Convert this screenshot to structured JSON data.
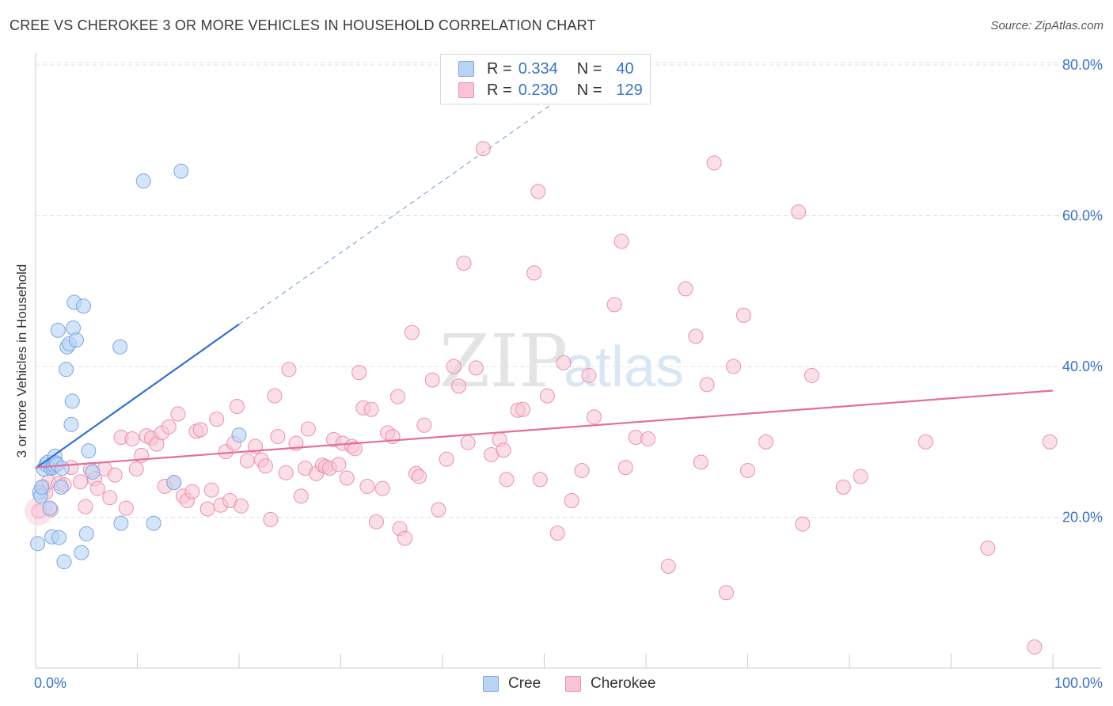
{
  "title": "CREE VS CHEROKEE 3 OR MORE VEHICLES IN HOUSEHOLD CORRELATION CHART",
  "source": "Source: ZipAtlas.com",
  "watermark": {
    "zip": "ZIP",
    "atlas": "atlas"
  },
  "legend": {
    "rows": [
      {
        "r_label": "R =",
        "r_value": "0.334",
        "n_label": "N =",
        "n_value": "40"
      },
      {
        "r_label": "R =",
        "r_value": "0.230",
        "n_label": "N =",
        "n_value": "129"
      }
    ]
  },
  "bottom_legend": [
    "Cree",
    "Cherokee"
  ],
  "colors": {
    "cree_fill": "#b9d3f5",
    "cree_stroke": "#7aa6e0",
    "cree_line": "#2f6fd0",
    "cherokee_fill": "#f8c4d4",
    "cherokee_stroke": "#ec8fad",
    "cherokee_line": "#e46e98",
    "grid": "#e0e0e0",
    "tick_text": "#3b73c8"
  },
  "chart_data": {
    "type": "scatter",
    "title": "CREE VS CHEROKEE 3 OR MORE VEHICLES IN HOUSEHOLD CORRELATION CHART",
    "xlabel": "",
    "ylabel": "3 or more Vehicles in Household",
    "xlim": [
      0,
      100
    ],
    "ylim": [
      0,
      84
    ],
    "x_ticks": [
      0,
      100
    ],
    "x_tick_labels": [
      "0.0%",
      "100.0%"
    ],
    "y_ticks": [
      20,
      40,
      60,
      80
    ],
    "y_tick_labels": [
      "20.0%",
      "40.0%",
      "60.0%",
      "80.0%"
    ],
    "grid": true,
    "legend_position": "top-center",
    "series": [
      {
        "name": "Cree",
        "r": 0.334,
        "n": 40,
        "trend": {
          "x": [
            0,
            20
          ],
          "y": [
            26.5,
            45.6
          ],
          "extended_to": [
            52,
            76
          ]
        },
        "points": [
          [
            0.2,
            16.5
          ],
          [
            0.4,
            23.3
          ],
          [
            0.5,
            22.8
          ],
          [
            0.6,
            24.0
          ],
          [
            0.8,
            26.4
          ],
          [
            1.0,
            27.0
          ],
          [
            1.2,
            27.3
          ],
          [
            1.4,
            21.2
          ],
          [
            1.5,
            26.5
          ],
          [
            1.6,
            17.4
          ],
          [
            1.7,
            26.6
          ],
          [
            1.8,
            26.9
          ],
          [
            1.9,
            28.1
          ],
          [
            2.0,
            27.2
          ],
          [
            2.1,
            27.0
          ],
          [
            2.2,
            44.8
          ],
          [
            2.3,
            17.3
          ],
          [
            2.5,
            24.0
          ],
          [
            2.6,
            26.5
          ],
          [
            2.8,
            14.1
          ],
          [
            3.0,
            39.6
          ],
          [
            3.1,
            42.6
          ],
          [
            3.3,
            43.0
          ],
          [
            3.5,
            32.3
          ],
          [
            3.6,
            35.4
          ],
          [
            3.7,
            45.1
          ],
          [
            3.8,
            48.5
          ],
          [
            4.0,
            43.5
          ],
          [
            4.5,
            15.3
          ],
          [
            4.7,
            48.0
          ],
          [
            5.0,
            17.8
          ],
          [
            5.2,
            28.8
          ],
          [
            5.6,
            26.0
          ],
          [
            8.3,
            42.6
          ],
          [
            8.4,
            19.2
          ],
          [
            10.6,
            64.6
          ],
          [
            11.6,
            19.2
          ],
          [
            13.6,
            24.6
          ],
          [
            14.3,
            65.9
          ],
          [
            20.0,
            30.9
          ]
        ]
      },
      {
        "name": "Cherokee",
        "r": 0.23,
        "n": 129,
        "trend": {
          "x": [
            0,
            100
          ],
          "y": [
            26.6,
            36.8
          ]
        },
        "points": [
          [
            0.3,
            20.8
          ],
          [
            0.8,
            24.0
          ],
          [
            1.0,
            23.3
          ],
          [
            1.3,
            24.7
          ],
          [
            1.5,
            21.0
          ],
          [
            2.3,
            24.5
          ],
          [
            2.8,
            24.3
          ],
          [
            3.5,
            26.6
          ],
          [
            4.4,
            24.7
          ],
          [
            4.9,
            21.4
          ],
          [
            5.4,
            26.3
          ],
          [
            5.8,
            25.1
          ],
          [
            6.1,
            23.8
          ],
          [
            6.8,
            26.4
          ],
          [
            7.3,
            22.6
          ],
          [
            7.8,
            25.6
          ],
          [
            8.4,
            30.6
          ],
          [
            8.9,
            21.2
          ],
          [
            9.5,
            30.4
          ],
          [
            9.9,
            26.4
          ],
          [
            10.4,
            28.2
          ],
          [
            10.9,
            30.8
          ],
          [
            11.4,
            30.5
          ],
          [
            11.9,
            29.7
          ],
          [
            12.4,
            31.2
          ],
          [
            12.7,
            24.1
          ],
          [
            13.1,
            32.0
          ],
          [
            13.6,
            24.6
          ],
          [
            14.0,
            33.7
          ],
          [
            14.5,
            22.8
          ],
          [
            14.9,
            22.2
          ],
          [
            15.4,
            23.4
          ],
          [
            15.8,
            31.4
          ],
          [
            16.2,
            31.6
          ],
          [
            16.9,
            21.1
          ],
          [
            17.3,
            23.6
          ],
          [
            17.8,
            33.0
          ],
          [
            18.2,
            21.6
          ],
          [
            18.7,
            28.7
          ],
          [
            19.1,
            22.2
          ],
          [
            19.5,
            29.8
          ],
          [
            19.8,
            34.7
          ],
          [
            20.2,
            21.5
          ],
          [
            20.8,
            27.5
          ],
          [
            21.6,
            29.4
          ],
          [
            22.2,
            27.6
          ],
          [
            22.6,
            26.8
          ],
          [
            23.1,
            19.7
          ],
          [
            23.5,
            36.1
          ],
          [
            23.8,
            30.7
          ],
          [
            24.6,
            25.9
          ],
          [
            24.9,
            39.6
          ],
          [
            25.6,
            29.8
          ],
          [
            26.1,
            22.8
          ],
          [
            26.5,
            26.5
          ],
          [
            26.8,
            31.7
          ],
          [
            27.6,
            25.8
          ],
          [
            28.2,
            26.9
          ],
          [
            28.5,
            26.7
          ],
          [
            28.9,
            26.5
          ],
          [
            29.3,
            30.3
          ],
          [
            29.8,
            27.0
          ],
          [
            30.2,
            29.8
          ],
          [
            30.6,
            25.2
          ],
          [
            31.1,
            29.4
          ],
          [
            31.4,
            29.1
          ],
          [
            31.8,
            39.2
          ],
          [
            32.2,
            34.5
          ],
          [
            32.6,
            24.1
          ],
          [
            33.0,
            34.3
          ],
          [
            33.5,
            19.4
          ],
          [
            34.1,
            23.8
          ],
          [
            34.6,
            31.2
          ],
          [
            35.1,
            30.7
          ],
          [
            35.6,
            36.0
          ],
          [
            35.8,
            18.5
          ],
          [
            36.3,
            17.2
          ],
          [
            37.0,
            44.5
          ],
          [
            37.4,
            25.8
          ],
          [
            37.7,
            25.4
          ],
          [
            38.2,
            32.2
          ],
          [
            39.0,
            38.2
          ],
          [
            39.6,
            21.0
          ],
          [
            40.4,
            27.7
          ],
          [
            41.1,
            40.0
          ],
          [
            41.6,
            37.4
          ],
          [
            42.1,
            53.7
          ],
          [
            42.5,
            29.9
          ],
          [
            43.3,
            39.8
          ],
          [
            44.0,
            68.9
          ],
          [
            44.8,
            28.3
          ],
          [
            45.6,
            30.3
          ],
          [
            46.0,
            28.9
          ],
          [
            46.3,
            25.0
          ],
          [
            47.4,
            34.2
          ],
          [
            47.9,
            34.3
          ],
          [
            49.0,
            52.4
          ],
          [
            49.4,
            63.2
          ],
          [
            49.6,
            25.0
          ],
          [
            50.3,
            36.1
          ],
          [
            51.3,
            17.9
          ],
          [
            51.9,
            40.5
          ],
          [
            52.7,
            22.2
          ],
          [
            53.7,
            26.2
          ],
          [
            54.4,
            38.8
          ],
          [
            54.9,
            33.3
          ],
          [
            56.9,
            48.2
          ],
          [
            57.6,
            56.6
          ],
          [
            58.0,
            26.6
          ],
          [
            59.0,
            30.6
          ],
          [
            60.2,
            30.4
          ],
          [
            62.2,
            13.5
          ],
          [
            63.9,
            50.3
          ],
          [
            64.9,
            44.0
          ],
          [
            65.4,
            27.3
          ],
          [
            66.0,
            37.6
          ],
          [
            66.7,
            67.0
          ],
          [
            67.9,
            10.0
          ],
          [
            68.6,
            40.0
          ],
          [
            69.6,
            46.8
          ],
          [
            70.0,
            26.2
          ],
          [
            71.8,
            30.0
          ],
          [
            75.0,
            60.5
          ],
          [
            75.4,
            19.1
          ],
          [
            76.3,
            38.8
          ],
          [
            79.4,
            24.0
          ],
          [
            81.1,
            25.4
          ],
          [
            87.5,
            30.0
          ],
          [
            93.6,
            15.9
          ],
          [
            98.2,
            2.8
          ],
          [
            99.7,
            30.0
          ]
        ]
      }
    ]
  }
}
